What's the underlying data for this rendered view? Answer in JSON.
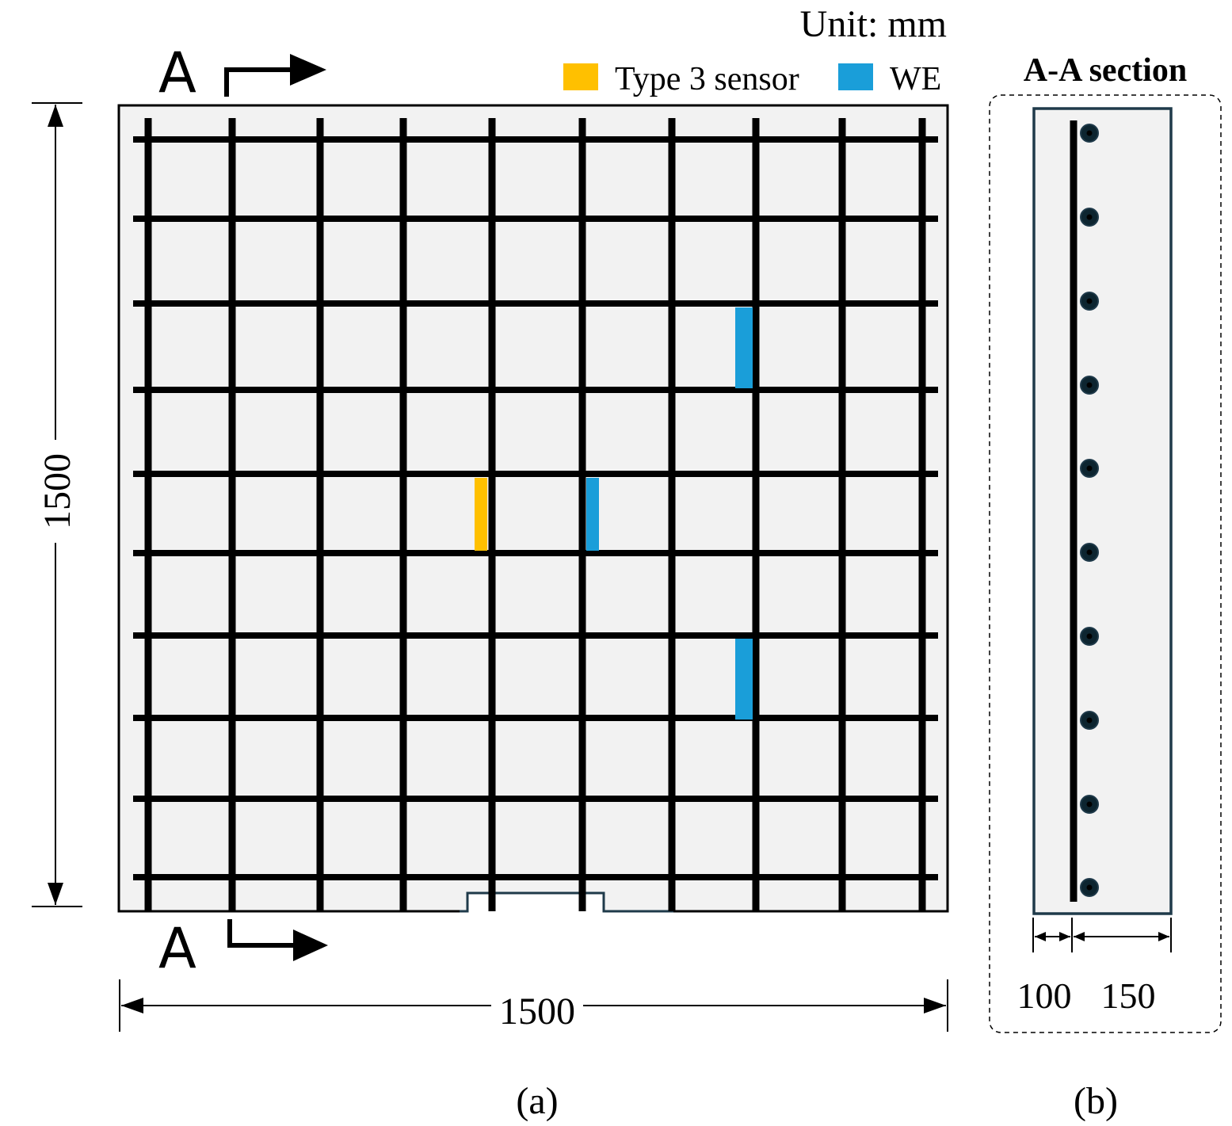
{
  "header": {
    "unit_label": "Unit: mm"
  },
  "legend": {
    "items": [
      {
        "label": "Type 3 sensor",
        "color": "#FFC000"
      },
      {
        "label": "WE",
        "color": "#1A9ED9"
      }
    ]
  },
  "plan_view": {
    "section_mark_top": "A",
    "section_mark_bottom": "A",
    "dimension_height": "1500",
    "dimension_width": "1500",
    "caption": "(a)",
    "concrete_color": "#F2F2F2",
    "rebar_color": "#000000"
  },
  "section_view": {
    "title": "A-A section",
    "dimension_left": "100",
    "dimension_right": "150",
    "caption": "(b)",
    "border_color": "#1F3A4A"
  }
}
